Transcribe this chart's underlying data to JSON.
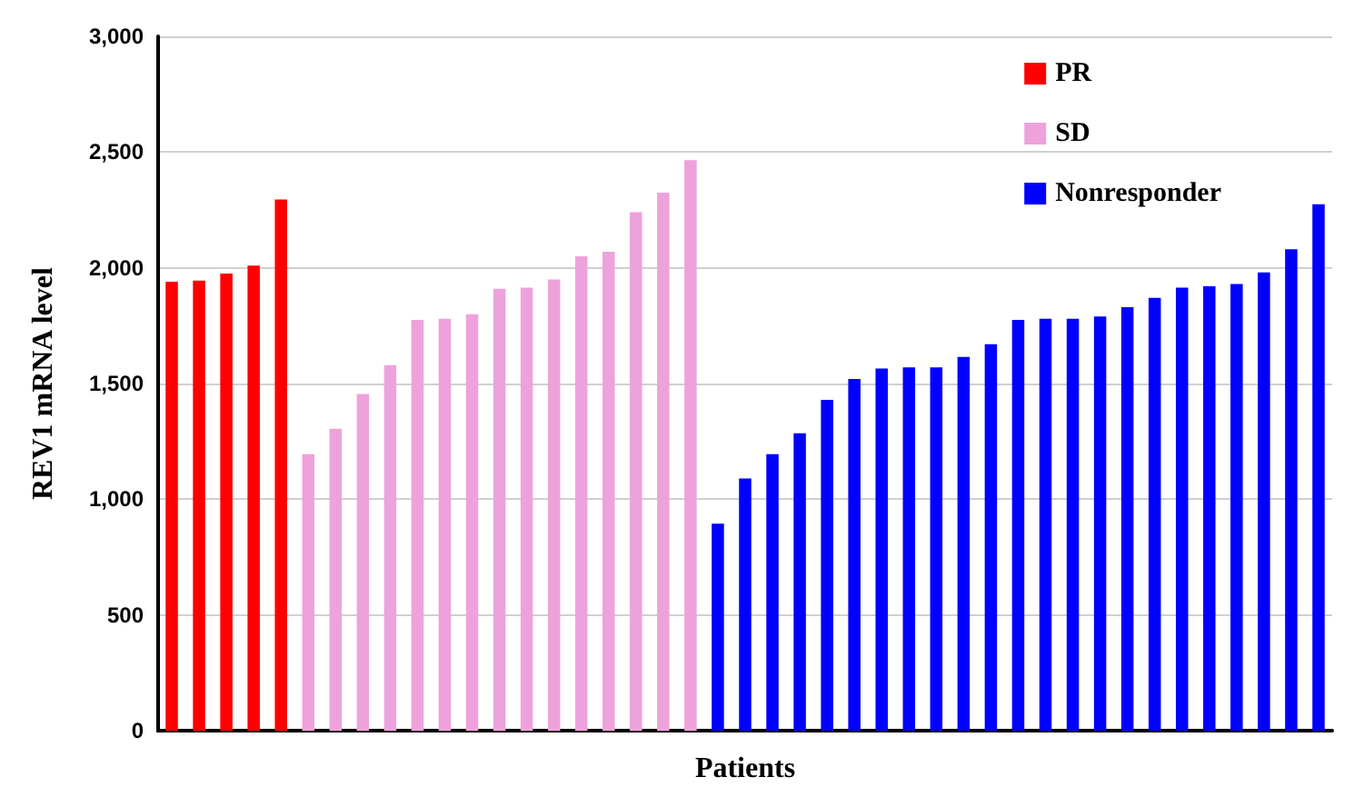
{
  "chart_data": {
    "type": "bar",
    "xlabel": "Patients",
    "ylabel": "REV1 mRNA level",
    "categories": [
      null,
      null,
      null,
      null,
      null,
      null,
      null,
      null,
      null,
      null,
      null,
      null,
      null,
      null,
      null,
      null,
      null,
      null,
      null,
      null,
      null,
      null,
      null,
      null,
      null,
      null,
      null,
      null,
      null,
      null,
      null,
      null,
      null,
      null,
      null,
      null,
      null,
      null,
      null,
      null,
      null,
      null,
      null
    ],
    "series": [
      {
        "name": "PR",
        "color": "#ff0000",
        "values": [
          1940,
          1945,
          1975,
          2010,
          2295,
          null,
          null,
          null,
          null,
          null,
          null,
          null,
          null,
          null,
          null,
          null,
          null,
          null,
          null,
          null,
          null,
          null,
          null,
          null,
          null,
          null,
          null,
          null,
          null,
          null,
          null,
          null,
          null,
          null,
          null,
          null,
          null,
          null,
          null,
          null,
          null,
          null,
          null
        ]
      },
      {
        "name": "SD",
        "color": "#eea2dc",
        "values": [
          null,
          null,
          null,
          null,
          null,
          1195,
          1305,
          1455,
          1580,
          1775,
          1780,
          1800,
          1910,
          1915,
          1950,
          2050,
          2070,
          2240,
          2325,
          2465,
          null,
          null,
          null,
          null,
          null,
          null,
          null,
          null,
          null,
          null,
          null,
          null,
          null,
          null,
          null,
          null,
          null,
          null,
          null,
          null,
          null,
          null,
          null
        ]
      },
      {
        "name": "Nonresponder",
        "color": "#0000ff",
        "values": [
          null,
          null,
          null,
          null,
          null,
          null,
          null,
          null,
          null,
          null,
          null,
          null,
          null,
          null,
          null,
          null,
          null,
          null,
          null,
          null,
          895,
          1090,
          1195,
          1285,
          1430,
          1520,
          1565,
          1570,
          1570,
          1615,
          1670,
          1775,
          1780,
          1780,
          1790,
          1830,
          1870,
          1915,
          1920,
          1930,
          1980,
          2080,
          2275
        ]
      }
    ],
    "ylim": [
      0,
      3000
    ],
    "yticks": [
      {
        "value": 0,
        "label": "0"
      },
      {
        "value": 500,
        "label": "500"
      },
      {
        "value": 1000,
        "label": "1,000"
      },
      {
        "value": 1500,
        "label": "1,500"
      },
      {
        "value": 2000,
        "label": "2,000"
      },
      {
        "value": 2500,
        "label": "2,500"
      },
      {
        "value": 3000,
        "label": "3,000"
      }
    ],
    "grid": "y",
    "legend": "top right"
  }
}
